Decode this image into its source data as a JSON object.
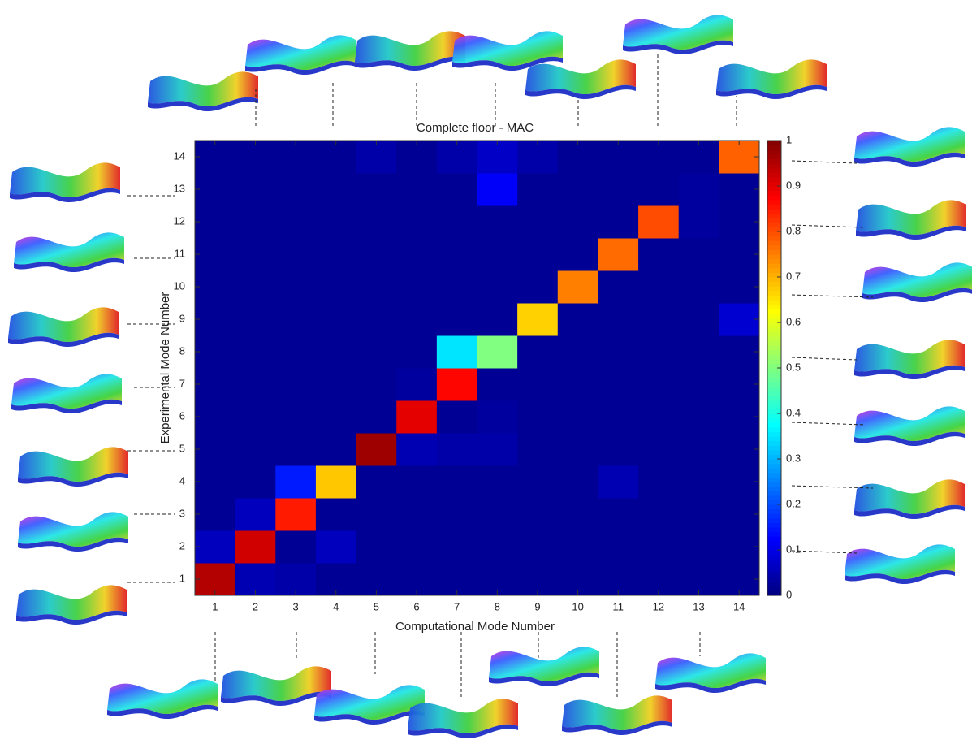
{
  "chart_data": {
    "type": "heatmap",
    "title": "Complete floor - MAC",
    "x_label": "Computational Mode Number",
    "y_label": "Experimental Mode Number",
    "x": [
      1,
      2,
      3,
      4,
      5,
      6,
      7,
      8,
      9,
      10,
      11,
      12,
      13,
      14
    ],
    "y": [
      1,
      2,
      3,
      4,
      5,
      6,
      7,
      8,
      9,
      10,
      11,
      12,
      13,
      14
    ],
    "z": [
      [
        0.95,
        0.05,
        0.04,
        0.02,
        0.02,
        0.02,
        0.02,
        0.02,
        0.02,
        0.02,
        0.02,
        0.02,
        0.02,
        0.02
      ],
      [
        0.06,
        0.92,
        0.02,
        0.06,
        0.02,
        0.02,
        0.02,
        0.02,
        0.02,
        0.02,
        0.02,
        0.02,
        0.02,
        0.02
      ],
      [
        0.02,
        0.06,
        0.85,
        0.02,
        0.02,
        0.02,
        0.02,
        0.02,
        0.02,
        0.02,
        0.02,
        0.02,
        0.02,
        0.02
      ],
      [
        0.02,
        0.02,
        0.15,
        0.68,
        0.02,
        0.02,
        0.02,
        0.02,
        0.02,
        0.02,
        0.05,
        0.02,
        0.02,
        0.02
      ],
      [
        0.02,
        0.02,
        0.02,
        0.02,
        0.97,
        0.05,
        0.04,
        0.04,
        0.02,
        0.02,
        0.02,
        0.02,
        0.02,
        0.02
      ],
      [
        0.02,
        0.02,
        0.02,
        0.02,
        0.02,
        0.9,
        0.02,
        0.03,
        0.02,
        0.02,
        0.02,
        0.02,
        0.02,
        0.02
      ],
      [
        0.02,
        0.02,
        0.02,
        0.02,
        0.02,
        0.03,
        0.87,
        0.02,
        0.02,
        0.02,
        0.02,
        0.02,
        0.02,
        0.02
      ],
      [
        0.02,
        0.02,
        0.02,
        0.02,
        0.02,
        0.02,
        0.35,
        0.5,
        0.02,
        0.02,
        0.02,
        0.02,
        0.02,
        0.02
      ],
      [
        0.02,
        0.02,
        0.02,
        0.02,
        0.02,
        0.02,
        0.02,
        0.02,
        0.67,
        0.02,
        0.02,
        0.02,
        0.02,
        0.08
      ],
      [
        0.02,
        0.02,
        0.02,
        0.02,
        0.02,
        0.02,
        0.02,
        0.02,
        0.02,
        0.75,
        0.02,
        0.02,
        0.02,
        0.02
      ],
      [
        0.02,
        0.02,
        0.02,
        0.02,
        0.02,
        0.02,
        0.02,
        0.02,
        0.02,
        0.02,
        0.77,
        0.02,
        0.02,
        0.02
      ],
      [
        0.02,
        0.02,
        0.02,
        0.02,
        0.02,
        0.02,
        0.02,
        0.02,
        0.02,
        0.02,
        0.02,
        0.8,
        0.03,
        0.02
      ],
      [
        0.02,
        0.02,
        0.02,
        0.02,
        0.02,
        0.02,
        0.02,
        0.12,
        0.02,
        0.02,
        0.02,
        0.02,
        0.03,
        0.02
      ],
      [
        0.02,
        0.02,
        0.02,
        0.02,
        0.04,
        0.02,
        0.04,
        0.07,
        0.04,
        0.02,
        0.02,
        0.02,
        0.02,
        0.78
      ]
    ],
    "colormap": "jet",
    "zlim": [
      0,
      1
    ],
    "colorbar_ticks": [
      0,
      0.1,
      0.2,
      0.3,
      0.4,
      0.5,
      0.6,
      0.7,
      0.8,
      0.9,
      1
    ]
  }
}
